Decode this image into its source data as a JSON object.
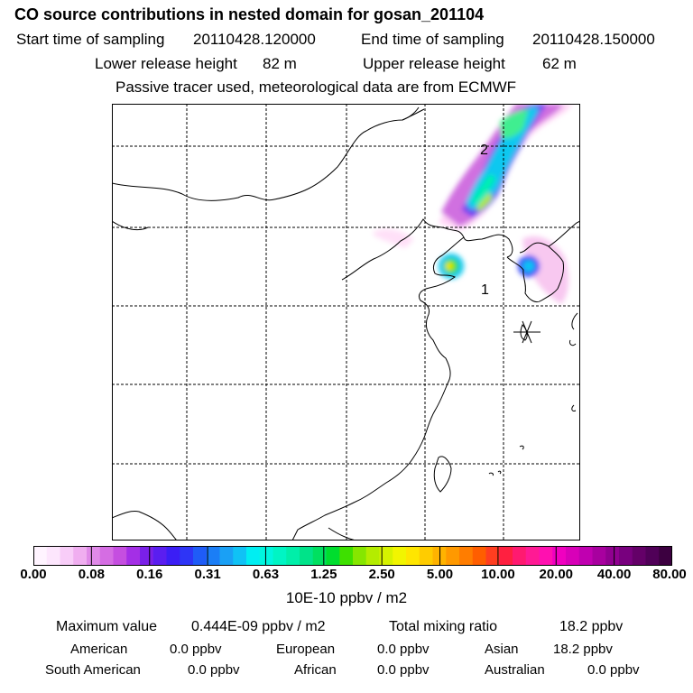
{
  "title": "CO  source contributions in nested domain for gosan_201104",
  "sampling": {
    "start_label": "Start time of sampling",
    "start_value": "20110428.120000",
    "end_label": "End time of sampling",
    "end_value": "20110428.150000"
  },
  "release": {
    "lower_label": "Lower release height",
    "lower_value": "82 m",
    "upper_label": "Upper release height",
    "upper_value": "62 m"
  },
  "note": "Passive tracer used, meteorological data are from ECMWF",
  "map": {
    "labels": [
      "1",
      "2"
    ],
    "receptor_marker": "asterisk-icon",
    "colors": {
      "coast": "#000000",
      "grid": "#000000",
      "frame": "#000000"
    }
  },
  "colorbar": {
    "ticks": [
      "0.00",
      "0.08",
      "0.16",
      "0.31",
      "0.63",
      "1.25",
      "2.50",
      "5.00",
      "10.00",
      "20.00",
      "40.00",
      "80.00"
    ],
    "units": "10E-10 ppbv / m2",
    "colors": [
      "#fff4ff",
      "#fde6fd",
      "#f8cdf8",
      "#f0aef0",
      "#e08ae8",
      "#d56de3",
      "#c54ee0",
      "#a42fe6",
      "#7a20e8",
      "#5a1ef0",
      "#3b1ef5",
      "#2e35f6",
      "#1f5cf7",
      "#1b7ef6",
      "#1aa0f5",
      "#10c2f5",
      "#00eef2",
      "#00f6df",
      "#00f5c4",
      "#00efa9",
      "#00e389",
      "#00e060",
      "#00dd2e",
      "#3ee000",
      "#86e600",
      "#b4ec00",
      "#d6f200",
      "#f2f500",
      "#ffe600",
      "#ffcc00",
      "#ffb300",
      "#ff9900",
      "#ff7d00",
      "#ff5e00",
      "#ff3e20",
      "#ff2040",
      "#ff1a70",
      "#ff1a94",
      "#ff10b0",
      "#f000c0",
      "#d800b8",
      "#c000b0",
      "#a8009f",
      "#900090",
      "#78007e",
      "#640068",
      "#500058",
      "#3c0040"
    ]
  },
  "summary": {
    "max_label": "Maximum value",
    "max_value": "0.444E-09 ppbv / m2",
    "total_label": "Total mixing ratio",
    "total_value": "18.2 ppbv",
    "regions": [
      {
        "name": "American",
        "value": "0.0 ppbv"
      },
      {
        "name": "European",
        "value": "0.0 ppbv"
      },
      {
        "name": "Asian",
        "value": "18.2 ppbv"
      },
      {
        "name": "South American",
        "value": "0.0 ppbv"
      },
      {
        "name": "African",
        "value": "0.0 ppbv"
      },
      {
        "name": "Australian",
        "value": "0.0 ppbv"
      }
    ]
  }
}
